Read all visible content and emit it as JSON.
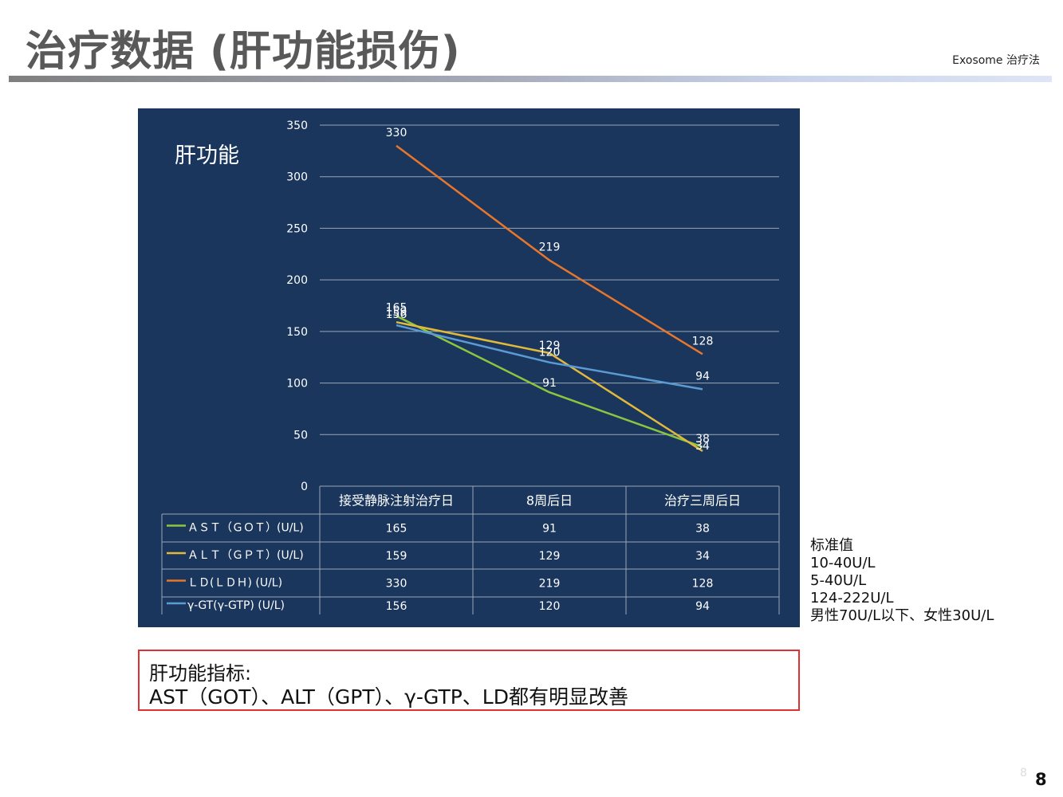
{
  "page": {
    "title": "治疗数据 (肝功能损伤)",
    "brand": "Exosome 治疗法",
    "page_number": "8",
    "page_number_ghost": "8"
  },
  "standards": {
    "heading": "标准值",
    "lines": [
      "10-40U/L",
      "5-40U/L",
      "124-222U/L",
      "男性70U/L以下、女性30U/L"
    ]
  },
  "note": {
    "line1": "肝功能指标:",
    "line2": "AST（GOT）、ALT（GPT）、γ-GTP、LD都有明显改善"
  },
  "colors": {
    "panel_bg": "#1a365d",
    "grid": "#9aa6b8",
    "text": "#ffffff",
    "note_border": "#e03030"
  },
  "chart_data": {
    "type": "line",
    "title": "肝功能",
    "categories": [
      "接受静脉注射治疗日",
      "8周后日",
      "治疗三周后日"
    ],
    "ylim": [
      0,
      350
    ],
    "yticks": [
      0,
      50,
      100,
      150,
      200,
      250,
      300,
      350
    ],
    "grid": true,
    "legend": "data table below chart",
    "series": [
      {
        "name": "ＡＳＴ（ＧＯＴ）(U/L)",
        "values": [
          165,
          91,
          38
        ],
        "color": "#8cc63f"
      },
      {
        "name": "ＡＬＴ（ＧＰＴ）(U/L)",
        "values": [
          159,
          129,
          34
        ],
        "color": "#e2b93b"
      },
      {
        "name": "ＬＤ(ＬＤＨ) (U/L)",
        "values": [
          330,
          219,
          128
        ],
        "color": "#e8762b"
      },
      {
        "name": "γ-GT(γ-GTP) (U/L)",
        "values": [
          156,
          120,
          94
        ],
        "color": "#5b9bd5"
      }
    ]
  }
}
